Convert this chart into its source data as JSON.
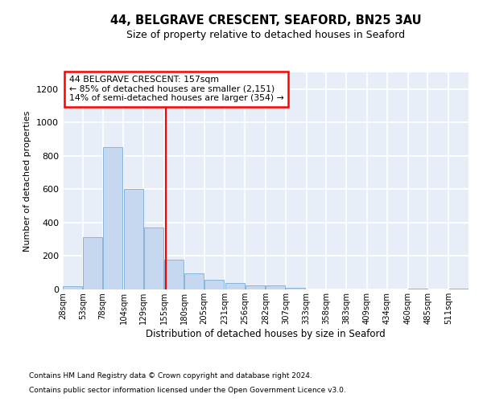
{
  "title_line1": "44, BELGRAVE CRESCENT, SEAFORD, BN25 3AU",
  "title_line2": "Size of property relative to detached houses in Seaford",
  "xlabel": "Distribution of detached houses by size in Seaford",
  "ylabel": "Number of detached properties",
  "footnote1": "Contains HM Land Registry data © Crown copyright and database right 2024.",
  "footnote2": "Contains public sector information licensed under the Open Government Licence v3.0.",
  "annotation_line1": "44 BELGRAVE CRESCENT: 157sqm",
  "annotation_line2": "← 85% of detached houses are smaller (2,151)",
  "annotation_line3": "14% of semi-detached houses are larger (354) →",
  "property_size": 157,
  "bar_color": "#C5D8F0",
  "bar_edge_color": "#7BADD4",
  "vline_color": "red",
  "background_color": "#E8EEF8",
  "grid_color": "white",
  "bins": [
    28,
    53,
    78,
    104,
    129,
    155,
    180,
    205,
    231,
    256,
    282,
    307,
    333,
    358,
    383,
    409,
    434,
    460,
    485,
    511,
    536
  ],
  "counts": [
    20,
    315,
    850,
    600,
    370,
    180,
    95,
    60,
    40,
    25,
    25,
    10,
    0,
    0,
    0,
    0,
    0,
    5,
    0,
    5
  ],
  "ylim": [
    0,
    1300
  ],
  "yticks": [
    0,
    200,
    400,
    600,
    800,
    1000,
    1200
  ]
}
